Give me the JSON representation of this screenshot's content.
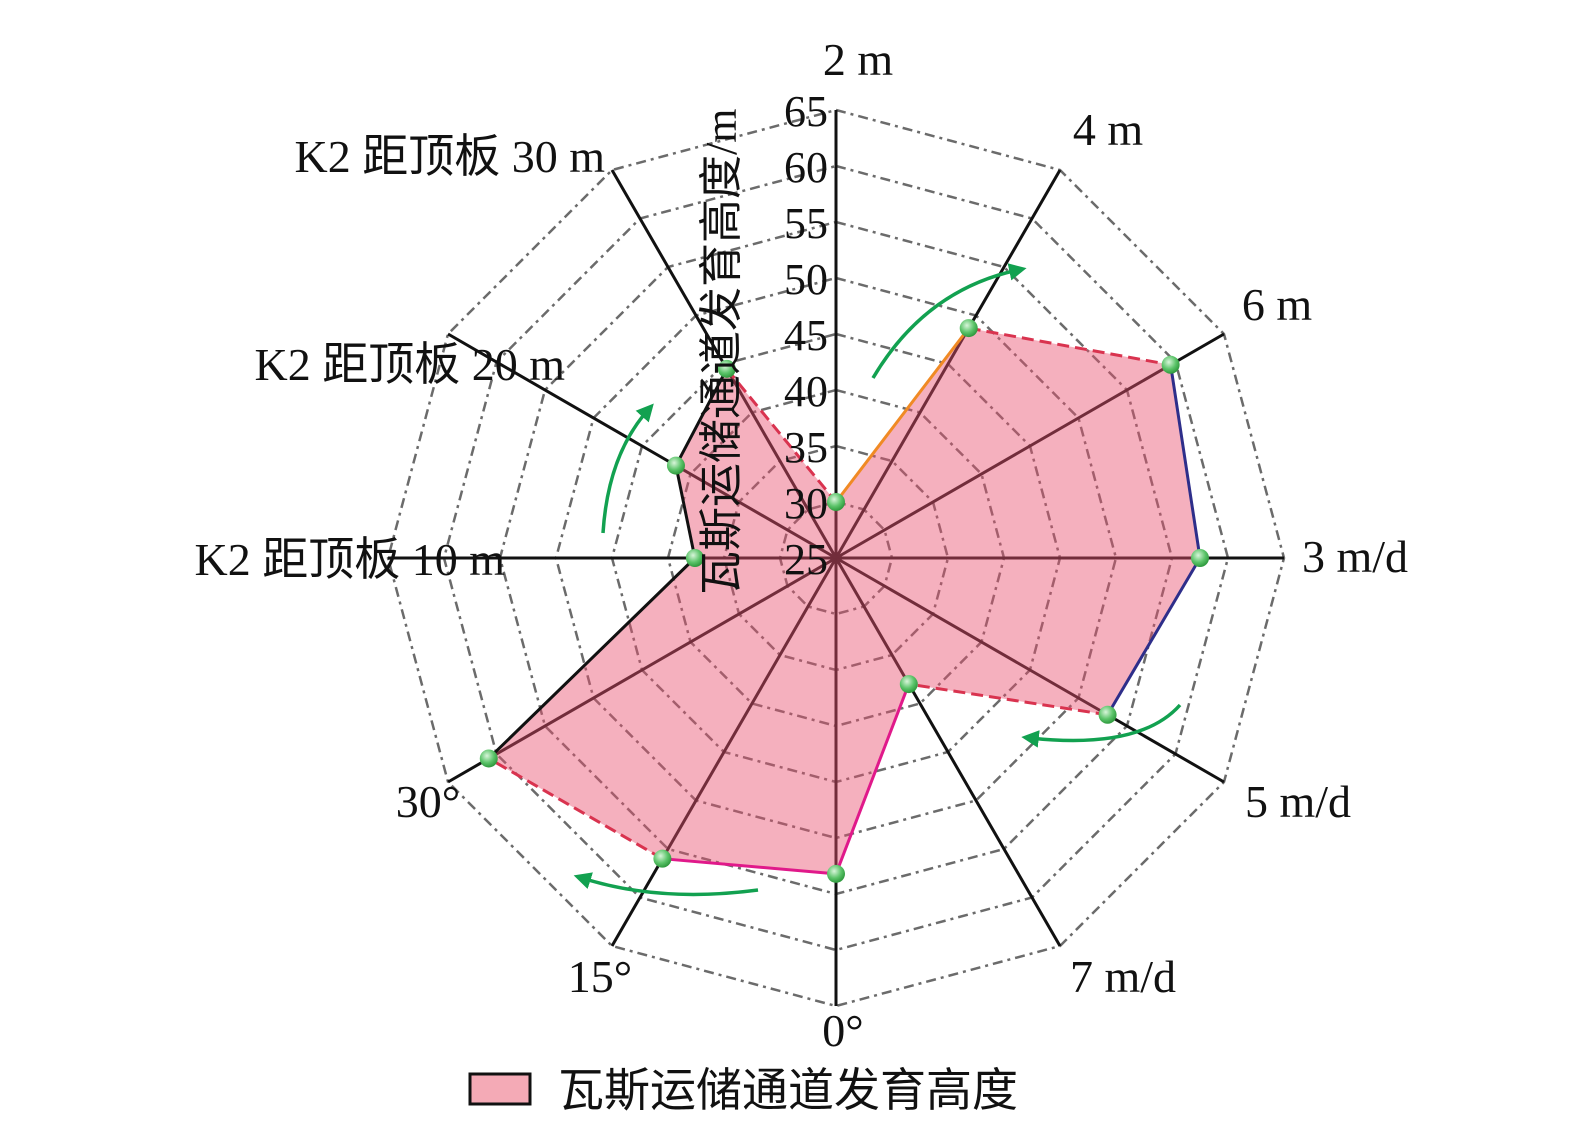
{
  "chart_data": {
    "type": "radar",
    "ylabel": "瓦斯运储通道发育高度/m",
    "rlim": [
      25,
      65
    ],
    "r_ticks": [
      "25",
      "30",
      "35",
      "40",
      "45",
      "50",
      "55",
      "60",
      "65"
    ],
    "grid": true,
    "legend_position": "bottom",
    "categories": [
      "2 m",
      "4 m",
      "6 m",
      "3 m/d",
      "5 m/d",
      "7 m/d",
      "0°",
      "15°",
      "30°",
      "K2 距顶板 10 m",
      "K2 距顶板 20 m",
      "K2 距顶板 30 m"
    ],
    "series": [
      {
        "name": "瓦斯运储通道发育高度",
        "values": [
          30,
          48.7,
          59.5,
          57.5,
          53,
          38,
          53.2,
          56,
          60.8,
          37.6,
          41.5,
          44.5
        ]
      }
    ],
    "group_colors": [
      "#f08a24",
      "#2e2e8a",
      "#e0198a",
      "#111111"
    ],
    "connector_color": "#d9334f",
    "fill_color": "#f4aab6",
    "marker_color": "#5cc46a",
    "arrow_color": "#12a150"
  }
}
